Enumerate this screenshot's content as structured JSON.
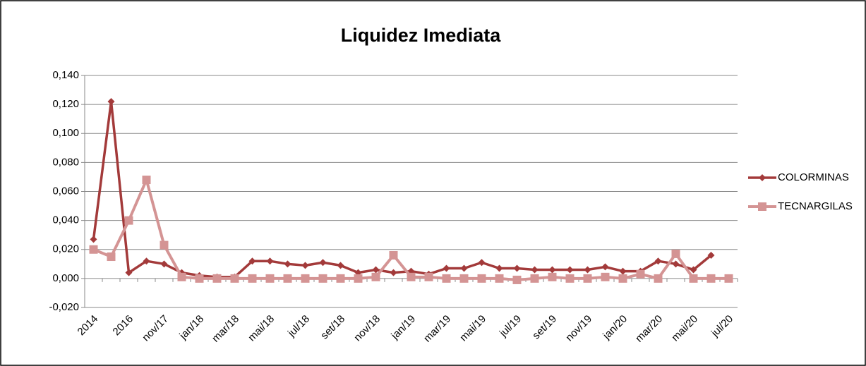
{
  "chart_data": {
    "type": "line",
    "title": "Liquidez Imediata",
    "categories": [
      "2014",
      null,
      "2016",
      null,
      "nov/17",
      null,
      "jan/18",
      null,
      "mar/18",
      null,
      "mai/18",
      null,
      "jul/18",
      null,
      "set/18",
      null,
      "nov/18",
      null,
      "jan/19",
      null,
      "mar/19",
      null,
      "mai/19",
      null,
      "jul/19",
      null,
      "set/19",
      null,
      "nov/19",
      null,
      "jan/20",
      null,
      "mar/20",
      null,
      "mai/20",
      null,
      "jul/20"
    ],
    "series": [
      {
        "name": "COLORMINAS",
        "color": "#a33a3a",
        "marker": "diamond",
        "values": [
          0.027,
          0.122,
          0.004,
          0.012,
          0.01,
          0.004,
          0.002,
          0.001,
          0.001,
          0.012,
          0.012,
          0.01,
          0.009,
          0.011,
          0.009,
          0.004,
          0.006,
          0.004,
          0.005,
          0.003,
          0.007,
          0.007,
          0.011,
          0.007,
          0.007,
          0.006,
          0.006,
          0.006,
          0.006,
          0.008,
          0.005,
          0.005,
          0.012,
          0.01,
          0.006,
          0.016,
          null
        ]
      },
      {
        "name": "TECNARGILAS",
        "color": "#d49494",
        "marker": "square",
        "values": [
          0.02,
          0.015,
          0.04,
          0.068,
          0.023,
          0.001,
          0.0,
          0.0,
          0.0,
          0.0,
          0.0,
          0.0,
          0.0,
          0.0,
          0.0,
          0.0,
          0.001,
          0.016,
          0.001,
          0.001,
          0.0,
          0.0,
          0.0,
          0.0,
          -0.001,
          0.0,
          0.001,
          0.0,
          0.0,
          0.001,
          0.0,
          0.003,
          0.0,
          0.017,
          0.0,
          0.0,
          0.0
        ]
      }
    ],
    "ylim": [
      -0.02,
      0.14
    ],
    "yticks": [
      {
        "value": -0.02,
        "label": "-0,020"
      },
      {
        "value": 0,
        "label": "0,000"
      },
      {
        "value": 0.02,
        "label": "0,020"
      },
      {
        "value": 0.04,
        "label": "0,040"
      },
      {
        "value": 0.06,
        "label": "0,060"
      },
      {
        "value": 0.08,
        "label": "0,080"
      },
      {
        "value": 0.1,
        "label": "0,100"
      },
      {
        "value": 0.12,
        "label": "0,120"
      },
      {
        "value": 0.14,
        "label": "0,140"
      }
    ],
    "grid": true,
    "legend": "right"
  }
}
